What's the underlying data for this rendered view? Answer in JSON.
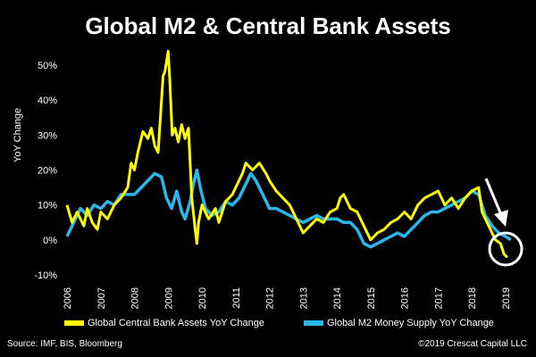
{
  "chart_data": {
    "type": "line",
    "title": "Global M2 & Central Bank Assets",
    "xlabel": "",
    "ylabel": "YoY Change",
    "xlim": [
      2006,
      2019.3
    ],
    "ylim": [
      -10,
      55
    ],
    "yticks": [
      -10,
      0,
      10,
      20,
      30,
      40,
      50
    ],
    "ytick_labels": [
      "-10%",
      "0%",
      "10%",
      "20%",
      "30%",
      "40%",
      "50%"
    ],
    "xtick_labels": [
      "2006",
      "2007",
      "2008",
      "2009",
      "2010",
      "2011",
      "2012",
      "2013",
      "2014",
      "2015",
      "2016",
      "2017",
      "2018",
      "2019"
    ],
    "series": [
      {
        "name": "Global Central Bank Assets YoY Change",
        "color": "#FFFF00",
        "points": [
          [
            2006.0,
            10
          ],
          [
            2006.15,
            5
          ],
          [
            2006.3,
            8
          ],
          [
            2006.5,
            4
          ],
          [
            2006.6,
            9
          ],
          [
            2006.75,
            5
          ],
          [
            2006.9,
            3
          ],
          [
            2007.0,
            8
          ],
          [
            2007.2,
            6
          ],
          [
            2007.4,
            10
          ],
          [
            2007.6,
            12
          ],
          [
            2007.8,
            15
          ],
          [
            2007.9,
            22
          ],
          [
            2008.0,
            20
          ],
          [
            2008.1,
            25
          ],
          [
            2008.25,
            31
          ],
          [
            2008.4,
            29
          ],
          [
            2008.5,
            32
          ],
          [
            2008.6,
            27
          ],
          [
            2008.7,
            25
          ],
          [
            2008.8,
            40
          ],
          [
            2008.85,
            47
          ],
          [
            2008.9,
            48
          ],
          [
            2009.0,
            54
          ],
          [
            2009.05,
            45
          ],
          [
            2009.12,
            30
          ],
          [
            2009.2,
            32
          ],
          [
            2009.3,
            28
          ],
          [
            2009.4,
            33
          ],
          [
            2009.5,
            29
          ],
          [
            2009.6,
            32
          ],
          [
            2009.7,
            12
          ],
          [
            2009.8,
            3
          ],
          [
            2009.85,
            -1
          ],
          [
            2009.9,
            5
          ],
          [
            2010.0,
            10
          ],
          [
            2010.2,
            6
          ],
          [
            2010.4,
            9
          ],
          [
            2010.5,
            5
          ],
          [
            2010.7,
            11
          ],
          [
            2010.9,
            13
          ],
          [
            2011.0,
            15
          ],
          [
            2011.2,
            19
          ],
          [
            2011.3,
            22
          ],
          [
            2011.5,
            20
          ],
          [
            2011.7,
            22
          ],
          [
            2011.9,
            19
          ],
          [
            2012.0,
            17
          ],
          [
            2012.2,
            14
          ],
          [
            2012.4,
            12
          ],
          [
            2012.6,
            10
          ],
          [
            2012.8,
            6
          ],
          [
            2012.95,
            3
          ],
          [
            2013.0,
            2
          ],
          [
            2013.2,
            4
          ],
          [
            2013.4,
            6
          ],
          [
            2013.6,
            5
          ],
          [
            2013.8,
            8
          ],
          [
            2014.0,
            9
          ],
          [
            2014.1,
            12
          ],
          [
            2014.2,
            13
          ],
          [
            2014.4,
            9
          ],
          [
            2014.6,
            8
          ],
          [
            2014.8,
            4
          ],
          [
            2015.0,
            0
          ],
          [
            2015.2,
            2
          ],
          [
            2015.4,
            3
          ],
          [
            2015.6,
            5
          ],
          [
            2015.8,
            6
          ],
          [
            2016.0,
            8
          ],
          [
            2016.2,
            6
          ],
          [
            2016.4,
            10
          ],
          [
            2016.6,
            12
          ],
          [
            2016.8,
            13
          ],
          [
            2017.0,
            14
          ],
          [
            2017.2,
            10
          ],
          [
            2017.4,
            12
          ],
          [
            2017.6,
            9
          ],
          [
            2017.8,
            12
          ],
          [
            2018.0,
            14
          ],
          [
            2018.2,
            15
          ],
          [
            2018.3,
            8
          ],
          [
            2018.5,
            4
          ],
          [
            2018.7,
            0
          ],
          [
            2018.85,
            -1
          ],
          [
            2018.95,
            -4
          ],
          [
            2019.05,
            -5
          ]
        ]
      },
      {
        "name": "Global M2 Money Supply YoY Change",
        "color": "#29B6E8",
        "points": [
          [
            2006.0,
            1
          ],
          [
            2006.2,
            5
          ],
          [
            2006.4,
            9
          ],
          [
            2006.6,
            7
          ],
          [
            2006.8,
            10
          ],
          [
            2007.0,
            9
          ],
          [
            2007.2,
            11
          ],
          [
            2007.4,
            10
          ],
          [
            2007.6,
            13
          ],
          [
            2007.8,
            13
          ],
          [
            2008.0,
            13
          ],
          [
            2008.2,
            15
          ],
          [
            2008.4,
            17
          ],
          [
            2008.6,
            19
          ],
          [
            2008.8,
            18
          ],
          [
            2008.95,
            12
          ],
          [
            2009.1,
            9
          ],
          [
            2009.25,
            14
          ],
          [
            2009.4,
            8
          ],
          [
            2009.5,
            6
          ],
          [
            2009.65,
            11
          ],
          [
            2009.75,
            16
          ],
          [
            2009.85,
            20
          ],
          [
            2009.95,
            15
          ],
          [
            2010.1,
            9
          ],
          [
            2010.3,
            7
          ],
          [
            2010.5,
            8
          ],
          [
            2010.7,
            11
          ],
          [
            2010.9,
            10
          ],
          [
            2011.1,
            12
          ],
          [
            2011.3,
            16
          ],
          [
            2011.45,
            19
          ],
          [
            2011.6,
            17
          ],
          [
            2011.8,
            13
          ],
          [
            2012.0,
            9
          ],
          [
            2012.2,
            9
          ],
          [
            2012.4,
            8
          ],
          [
            2012.6,
            7
          ],
          [
            2012.8,
            6
          ],
          [
            2013.0,
            5
          ],
          [
            2013.2,
            6
          ],
          [
            2013.4,
            7
          ],
          [
            2013.6,
            6
          ],
          [
            2013.8,
            6
          ],
          [
            2014.0,
            6
          ],
          [
            2014.2,
            5
          ],
          [
            2014.4,
            5
          ],
          [
            2014.6,
            3
          ],
          [
            2014.8,
            -1
          ],
          [
            2015.0,
            -2
          ],
          [
            2015.2,
            -1
          ],
          [
            2015.4,
            0
          ],
          [
            2015.6,
            1
          ],
          [
            2015.8,
            2
          ],
          [
            2016.0,
            1
          ],
          [
            2016.2,
            3
          ],
          [
            2016.4,
            5
          ],
          [
            2016.6,
            7
          ],
          [
            2016.8,
            8
          ],
          [
            2017.0,
            8
          ],
          [
            2017.2,
            9
          ],
          [
            2017.4,
            10
          ],
          [
            2017.6,
            11
          ],
          [
            2017.8,
            12
          ],
          [
            2018.0,
            14
          ],
          [
            2018.2,
            13
          ],
          [
            2018.4,
            7
          ],
          [
            2018.6,
            4
          ],
          [
            2018.8,
            2
          ],
          [
            2019.0,
            1
          ],
          [
            2019.15,
            0
          ]
        ]
      }
    ],
    "annotations": [
      {
        "type": "arrow",
        "direction": "down",
        "description": "white arrow pointing to recent decline"
      },
      {
        "type": "circle",
        "description": "white circle highlighting late 2018 - 2019 values below 0%"
      }
    ]
  },
  "legend": {
    "items": [
      {
        "label": "Global Central Bank Assets YoY Change",
        "color": "#FFFF00"
      },
      {
        "label": "Global M2 Money Supply YoY Change",
        "color": "#29B6E8"
      }
    ]
  },
  "footer": {
    "source": "Source: IMF, BIS, Bloomberg",
    "copyright": "©2019 Crescat Capital LLC"
  }
}
